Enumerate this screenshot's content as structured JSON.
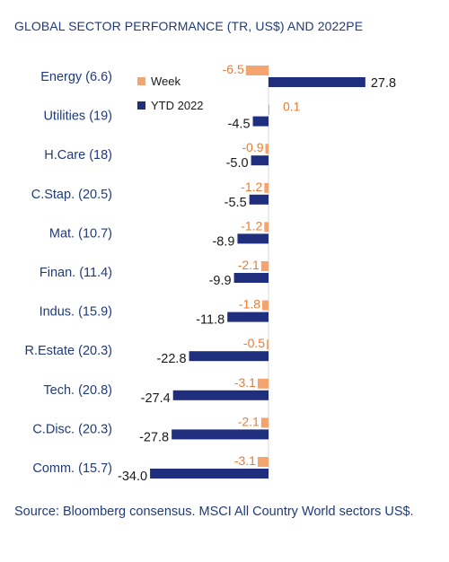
{
  "title": "GLOBAL SECTOR PERFORMANCE (TR, US$) AND 2022PE",
  "source": "Source: Bloomberg consensus. MSCI All Country World sectors US$.",
  "colors": {
    "week": "#f4a46f",
    "ytd": "#1f2f7e",
    "ytd_label": "#1a1a1a",
    "week_label": "#ec7b33",
    "category": "#1f3b7a"
  },
  "chart_data": {
    "type": "bar",
    "orientation": "horizontal",
    "categories": [
      "Energy (6.6)",
      "Utilities (19)",
      "H.Care (18)",
      "C.Stap. (20.5)",
      "Mat. (10.7)",
      "Finan. (11.4)",
      "Indus. (15.9)",
      "R.Estate (20.3)",
      "Tech. (20.8)",
      "C.Disc. (20.3)",
      "Comm. (15.7)"
    ],
    "series": [
      {
        "name": "Week",
        "values": [
          -6.5,
          0.1,
          -0.9,
          -1.2,
          -1.2,
          -2.1,
          -1.8,
          -0.5,
          -3.1,
          -2.1,
          -3.1
        ]
      },
      {
        "name": "YTD 2022",
        "values": [
          27.8,
          -4.5,
          -5.0,
          -5.5,
          -8.9,
          -9.9,
          -11.8,
          -22.8,
          -27.4,
          -27.8,
          -34.0
        ]
      }
    ],
    "labels": {
      "Week": [
        "-6.5",
        "0.1",
        "-0.9",
        "-1.2",
        "-1.2",
        "-2.1",
        "-1.8",
        "-0.5",
        "-3.1",
        "-2.1",
        "-3.1"
      ],
      "YTD 2022": [
        "27.8",
        "-4.5",
        "-5.0",
        "-5.5",
        "-8.9",
        "-9.9",
        "-11.8",
        "-22.8",
        "-27.4",
        "-27.8",
        "-34.0"
      ]
    },
    "legend": "top-left inside plot",
    "grid": false
  }
}
